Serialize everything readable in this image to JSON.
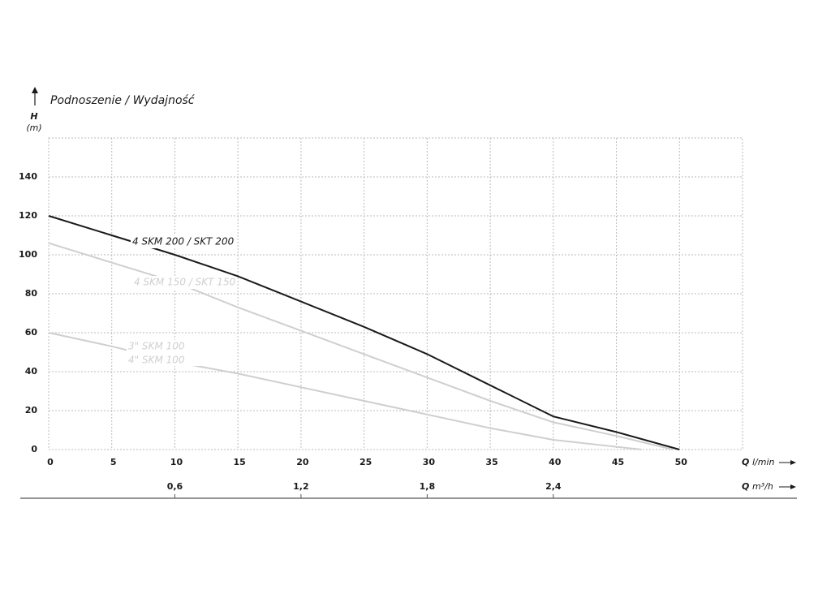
{
  "chart_data": {
    "type": "line",
    "title": "Podnoszenie / Wydajność",
    "y_label_symbol": "H",
    "y_label_unit": "(m)",
    "x_label_symbol": "Q",
    "x_label_unit": "l/min",
    "x2_label_symbol": "Q",
    "x2_label_unit": "m³/h",
    "xlim": [
      0,
      55
    ],
    "xticks": [
      0,
      5,
      10,
      15,
      20,
      25,
      30,
      35,
      40,
      45,
      50
    ],
    "x2lim": [
      0,
      3.3
    ],
    "x2ticks": [
      {
        "value": 0.6,
        "label": "0,6"
      },
      {
        "value": 1.2,
        "label": "1,2"
      },
      {
        "value": 1.8,
        "label": "1,8"
      },
      {
        "value": 2.4,
        "label": "2,4"
      }
    ],
    "ylim": [
      0,
      160
    ],
    "yticks": [
      0,
      20,
      40,
      60,
      80,
      100,
      120,
      140
    ],
    "grid": true,
    "series": [
      {
        "name": "4 SKM 200 / SKT 200",
        "color": "#1a1a1a",
        "x": [
          0,
          5,
          10,
          15,
          20,
          25,
          30,
          35,
          40,
          45,
          50
        ],
        "values": [
          120,
          110,
          100,
          89,
          76,
          63,
          49,
          33,
          17,
          9,
          0
        ]
      },
      {
        "name": "4 SKM 150 / SKT 150",
        "color": "#cfcfcf",
        "x": [
          0,
          5,
          10,
          15,
          20,
          25,
          30,
          35,
          40,
          45,
          49.5
        ],
        "values": [
          106,
          96,
          86,
          73,
          61,
          49,
          37,
          25,
          14,
          7,
          0
        ]
      },
      {
        "name": "3\" SKM 100",
        "name_2": "4\" SKM 100",
        "color": "#cfcfcf",
        "x": [
          0,
          5,
          10,
          15,
          20,
          25,
          30,
          35,
          40,
          47
        ],
        "values": [
          60,
          53,
          45,
          39,
          32,
          25,
          18,
          11,
          5,
          0
        ]
      }
    ]
  }
}
